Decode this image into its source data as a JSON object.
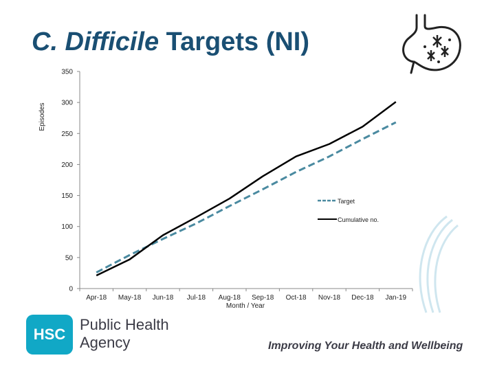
{
  "title": {
    "italic": "C. Difficile",
    "rest": " Targets (NI)"
  },
  "chart_data": {
    "type": "line",
    "categories": [
      "Apr-18",
      "May-18",
      "Jun-18",
      "Jul-18",
      "Aug-18",
      "Sep-18",
      "Oct-18",
      "Nov-18",
      "Dec-18",
      "Jan-19"
    ],
    "series": [
      {
        "name": "Target",
        "style": "dashed",
        "color": "#4a8aa0",
        "values": [
          26,
          54,
          80,
          105,
          133,
          160,
          188,
          213,
          241,
          268
        ]
      },
      {
        "name": "Cumulative no.",
        "style": "solid",
        "color": "#000000",
        "values": [
          21,
          47,
          86,
          115,
          145,
          181,
          213,
          233,
          261,
          301
        ]
      }
    ],
    "ylabel": "Episodes",
    "xlabel": "Month / Year",
    "ylim": [
      0,
      350
    ],
    "yticks": [
      0,
      50,
      100,
      150,
      200,
      250,
      300,
      350
    ],
    "legend_position": "right"
  },
  "branding": {
    "logo_mark": "HSC",
    "agency_line1": "Public Health",
    "agency_line2": "Agency",
    "tagline": "Improving Your Health and Wellbeing"
  },
  "colors": {
    "title": "#1a4f73",
    "hsc_blue": "#11a8c6"
  }
}
